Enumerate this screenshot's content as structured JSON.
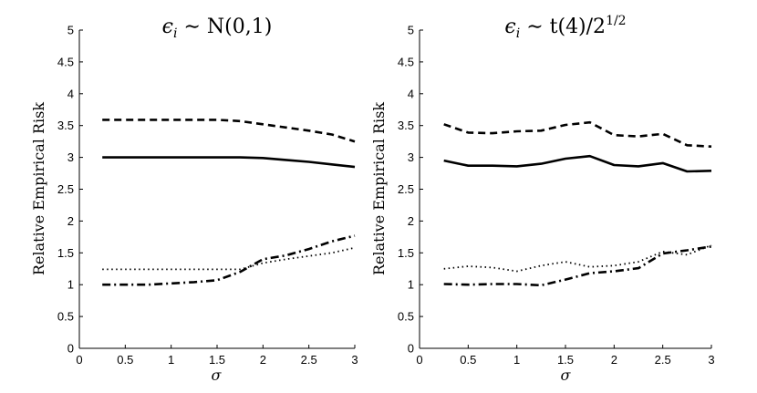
{
  "chart_data": [
    {
      "type": "line",
      "title": "ϵi ∼ N(0,1)",
      "xlabel": "σ",
      "ylabel": "Relative Empirical Risk",
      "xlim": [
        0,
        3
      ],
      "ylim": [
        0,
        5
      ],
      "xticks": [
        0,
        0.5,
        1,
        1.5,
        2,
        2.5,
        3
      ],
      "xtick_labels": [
        "0",
        "0.5",
        "1",
        "1.5",
        "2",
        "2.5",
        "3"
      ],
      "yticks": [
        0,
        0.5,
        1,
        1.5,
        2,
        2.5,
        3,
        3.5,
        4,
        4.5,
        5
      ],
      "ytick_labels": [
        "0",
        "0.5",
        "1",
        "1.5",
        "2",
        "2.5",
        "3",
        "3.5",
        "4",
        "4.5",
        "5"
      ],
      "grid": false,
      "x": [
        0.25,
        0.5,
        0.75,
        1,
        1.25,
        1.5,
        1.75,
        2,
        2.25,
        2.5,
        2.75,
        3
      ],
      "series": [
        {
          "name": "dashed",
          "style": "dashed",
          "values": [
            3.59,
            3.59,
            3.59,
            3.59,
            3.59,
            3.59,
            3.57,
            3.52,
            3.47,
            3.42,
            3.36,
            3.25
          ]
        },
        {
          "name": "solid",
          "style": "solid",
          "values": [
            3.0,
            3.0,
            3.0,
            3.0,
            3.0,
            3.0,
            3.0,
            2.99,
            2.96,
            2.93,
            2.89,
            2.85
          ]
        },
        {
          "name": "dotted",
          "style": "dotted",
          "values": [
            1.24,
            1.24,
            1.24,
            1.24,
            1.24,
            1.24,
            1.24,
            1.34,
            1.4,
            1.45,
            1.5,
            1.58
          ]
        },
        {
          "name": "dashdot",
          "style": "dashdot",
          "values": [
            1.0,
            1.0,
            1.0,
            1.02,
            1.04,
            1.07,
            1.2,
            1.4,
            1.46,
            1.56,
            1.68,
            1.77
          ]
        }
      ]
    },
    {
      "type": "line",
      "title": "ϵi ∼ t(4)/2^(1/2)",
      "xlabel": "σ",
      "ylabel": "Relative Empirical Risk",
      "xlim": [
        0,
        3
      ],
      "ylim": [
        0,
        5
      ],
      "xticks": [
        0,
        0.5,
        1,
        1.5,
        2,
        2.5,
        3
      ],
      "xtick_labels": [
        "0",
        "0.5",
        "1",
        "1.5",
        "2",
        "2.5",
        "3"
      ],
      "yticks": [
        0,
        0.5,
        1,
        1.5,
        2,
        2.5,
        3,
        3.5,
        4,
        4.5,
        5
      ],
      "ytick_labels": [
        "0",
        "0.5",
        "1",
        "1.5",
        "2",
        "2.5",
        "3",
        "3.5",
        "4",
        "4.5",
        "5"
      ],
      "grid": false,
      "x": [
        0.25,
        0.5,
        0.75,
        1,
        1.25,
        1.5,
        1.75,
        2,
        2.25,
        2.5,
        2.75,
        3
      ],
      "series": [
        {
          "name": "dashed",
          "style": "dashed",
          "values": [
            3.52,
            3.39,
            3.38,
            3.41,
            3.42,
            3.51,
            3.55,
            3.35,
            3.33,
            3.37,
            3.19,
            3.17
          ]
        },
        {
          "name": "solid",
          "style": "solid",
          "values": [
            2.95,
            2.87,
            2.87,
            2.86,
            2.9,
            2.98,
            3.02,
            2.88,
            2.86,
            2.91,
            2.78,
            2.79
          ]
        },
        {
          "name": "dotted",
          "style": "dotted",
          "values": [
            1.25,
            1.29,
            1.27,
            1.21,
            1.3,
            1.36,
            1.28,
            1.3,
            1.36,
            1.52,
            1.47,
            1.62
          ]
        },
        {
          "name": "dashdot",
          "style": "dashdot",
          "values": [
            1.01,
            1.0,
            1.01,
            1.01,
            0.99,
            1.08,
            1.18,
            1.21,
            1.26,
            1.49,
            1.54,
            1.6
          ]
        }
      ]
    }
  ],
  "titles": [
    {
      "base": "ϵ",
      "sub": "i",
      "rest": " ∼ N(0,1)",
      "sup": ""
    },
    {
      "base": "ϵ",
      "sub": "i",
      "rest": " ∼ t(4)/2",
      "sup": "1/2"
    }
  ]
}
